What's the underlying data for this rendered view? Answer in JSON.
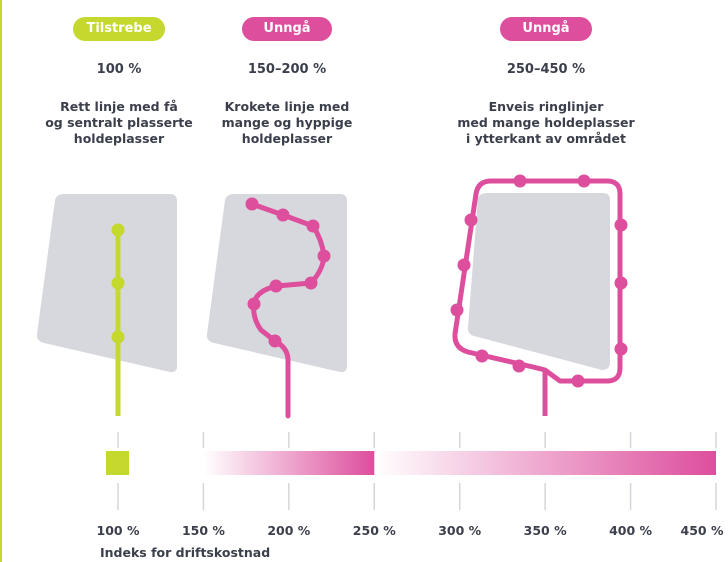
{
  "columns": [
    {
      "badge": "Tilstrebe",
      "badge_color": "#c4d82e",
      "percent": "100 %",
      "description": [
        "Rett linje med få",
        "og sentralt plasserte",
        "holdeplasser"
      ]
    },
    {
      "badge": "Unngå",
      "badge_color": "#dd4e9d",
      "percent": "150–200 %",
      "description": [
        "Krokete linje med",
        "mange og hyppige",
        "holdeplasser"
      ]
    },
    {
      "badge": "Unngå",
      "badge_color": "#dd4e9d",
      "percent": "250–450 %",
      "description": [
        "Enveis ringlinjer",
        "med mange holdeplasser",
        "i ytterkant av området"
      ]
    }
  ],
  "scale": {
    "title": "Indeks for driftskostnad",
    "ticks": [
      100,
      150,
      200,
      250,
      300,
      350,
      400,
      450
    ],
    "tick_labels": [
      "100 %",
      "150 %",
      "200 %",
      "250 %",
      "300 %",
      "350 %",
      "400 %",
      "450 %"
    ],
    "ranges": [
      {
        "from": 100,
        "to": 104,
        "color": "#c4d82e",
        "gradient": false
      },
      {
        "from": 150,
        "to": 250,
        "color": "#dd4e9d",
        "gradient": true
      },
      {
        "from": 250,
        "to": 450,
        "color": "#dd4e9d",
        "gradient": true
      }
    ]
  },
  "colors": {
    "area": "#d7d8de",
    "green": "#c4d82e",
    "pink": "#dd4e9d"
  }
}
